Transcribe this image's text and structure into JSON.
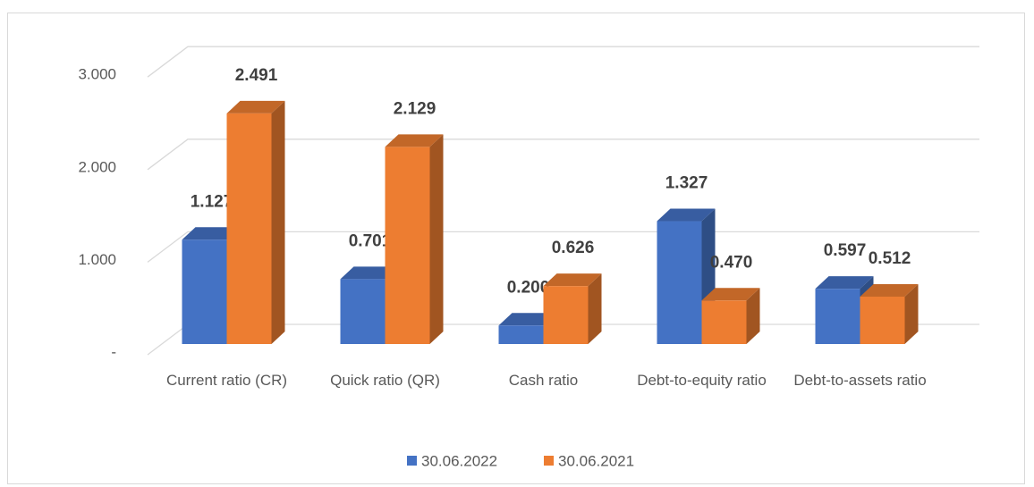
{
  "chart_data": {
    "type": "bar3d",
    "categories": [
      "Current ratio (CR)",
      "Quick ratio (QR)",
      "Cash ratio",
      "Debt-to-equity ratio",
      "Debt-to-assets ratio"
    ],
    "series": [
      {
        "name": "30.06.2022",
        "color": "#4472c4",
        "values": [
          1.127,
          0.701,
          0.2,
          1.327,
          0.597
        ],
        "value_labels": [
          "1.127",
          "0.701",
          "0.200",
          "1.327",
          "0.597"
        ]
      },
      {
        "name": "30.06.2021",
        "color": "#ed7d31",
        "values": [
          2.491,
          2.129,
          0.626,
          0.47,
          0.512
        ],
        "value_labels": [
          "2.491",
          "2.129",
          "0.626",
          "0.470",
          "0.512"
        ]
      }
    ],
    "ylim": [
      0,
      3
    ],
    "yticks": [
      {
        "value": 0,
        "label": "-"
      },
      {
        "value": 1,
        "label": "1.000"
      },
      {
        "value": 2,
        "label": "2.000"
      },
      {
        "value": 3,
        "label": "3.000"
      }
    ],
    "grid": true,
    "legend": "bottom"
  }
}
